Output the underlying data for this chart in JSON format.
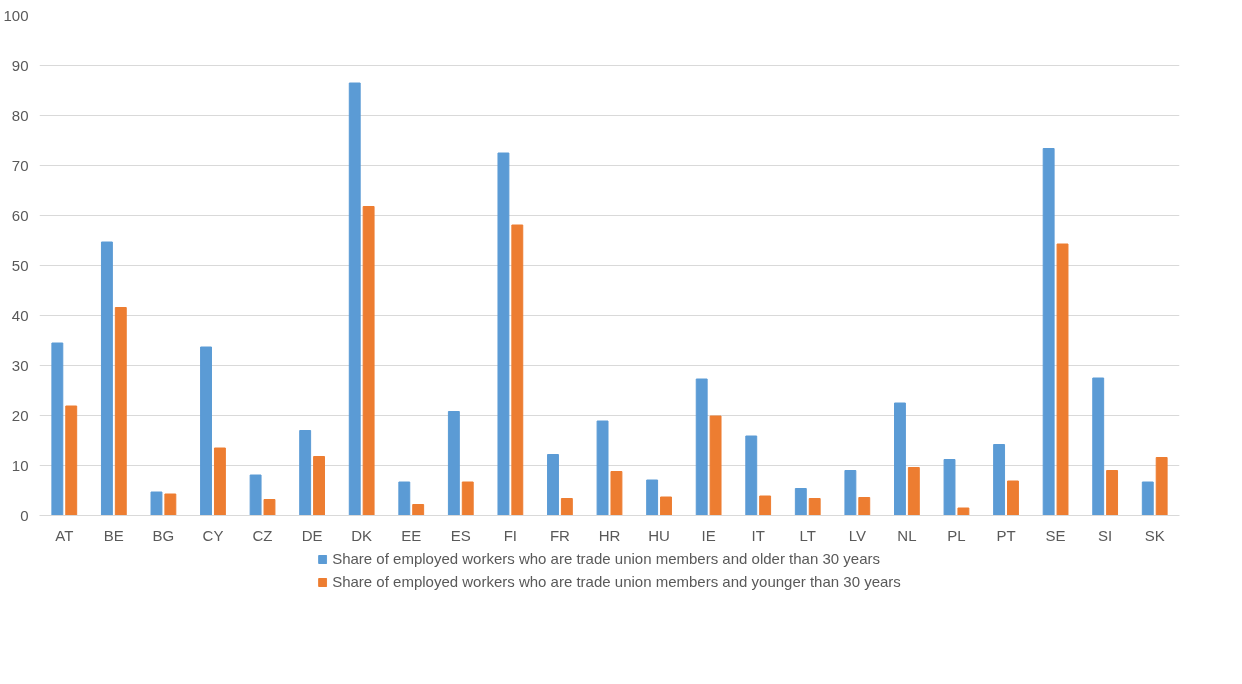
{
  "chart_data": {
    "type": "bar",
    "categories": [
      "AT",
      "BE",
      "BG",
      "CY",
      "CZ",
      "DE",
      "DK",
      "EE",
      "ES",
      "FI",
      "FR",
      "HR",
      "HU",
      "IE",
      "IT",
      "LT",
      "LV",
      "NL",
      "PL",
      "PT",
      "SE",
      "SI",
      "SK"
    ],
    "series": [
      {
        "name": "Share of employed workers who are trade union members and older than 30 years",
        "color": "#5b9bd5",
        "values": [
          34.5,
          54.7,
          4.7,
          33.7,
          8.1,
          17.0,
          86.5,
          6.7,
          20.8,
          72.5,
          12.2,
          18.9,
          7.1,
          27.3,
          15.9,
          5.4,
          9.0,
          22.5,
          11.2,
          14.2,
          73.4,
          27.5,
          6.7
        ]
      },
      {
        "name": "Share of employed workers who are trade union members and younger than 30 years",
        "color": "#ed7d31",
        "values": [
          21.9,
          41.6,
          4.3,
          13.5,
          3.2,
          11.8,
          61.8,
          2.2,
          6.7,
          58.1,
          3.4,
          8.8,
          3.7,
          19.9,
          3.9,
          3.4,
          3.6,
          9.6,
          1.5,
          6.9,
          54.3,
          9.0,
          11.6
        ]
      }
    ],
    "ylim": [
      0,
      100
    ],
    "yticks": [
      0,
      10,
      20,
      30,
      40,
      50,
      60,
      70,
      80,
      90,
      100
    ],
    "grid": "y",
    "legend": "bottom"
  }
}
